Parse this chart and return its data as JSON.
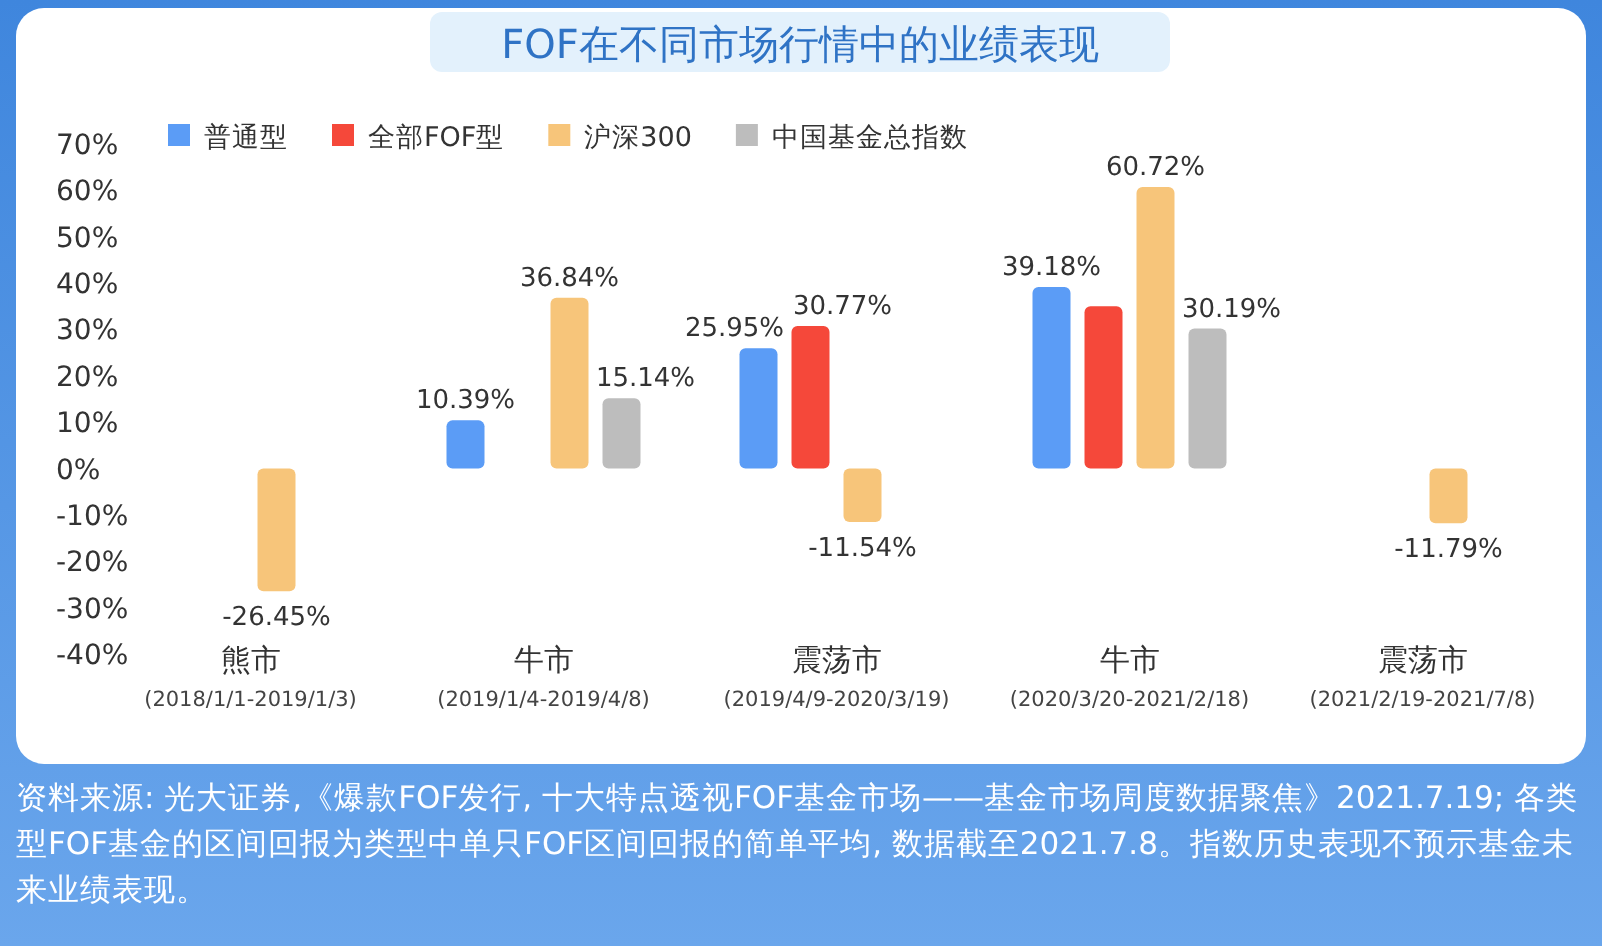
{
  "chart_data": {
    "type": "bar",
    "title": "FOF在不同市场行情中的业绩表现",
    "categories": [
      "熊市 (2018/1/1-2019/1/3)",
      "牛市 (2019/1/4-2019/4/8)",
      "震荡市 (2019/4/9-2020/3/19)",
      "牛市 (2020/3/20-2021/2/18)",
      "震荡市 (2021/2/19-2021/7/8)"
    ],
    "series": [
      {
        "name": "普通型",
        "color": "#5b9cf6",
        "values": [
          null,
          10.39,
          25.95,
          39.18,
          null
        ],
        "value_labels": [
          null,
          "10.39%",
          "25.95%",
          "39.18%",
          null
        ]
      },
      {
        "name": "全部FOF型",
        "color": "#f5483a",
        "values": [
          null,
          null,
          30.77,
          35,
          null
        ],
        "value_labels": [
          null,
          null,
          "30.77%",
          null,
          null
        ]
      },
      {
        "name": "沪深300",
        "color": "#f7c57a",
        "values": [
          -26.45,
          36.84,
          -11.54,
          60.72,
          -11.79
        ],
        "value_labels": [
          "-26.45%",
          "36.84%",
          "-11.54%",
          "60.72%",
          "-11.79%"
        ]
      },
      {
        "name": "中国基金总指数",
        "color": "#bdbdbd",
        "values": [
          null,
          15.14,
          null,
          30.19,
          null
        ],
        "value_labels": [
          null,
          "15.14%",
          null,
          "30.19%",
          null
        ]
      }
    ],
    "ylim": [
      -40,
      70
    ],
    "yticks": [
      {
        "value": 70,
        "label": "70%"
      },
      {
        "value": 60,
        "label": "60%"
      },
      {
        "value": 50,
        "label": "50%"
      },
      {
        "value": 40,
        "label": "40%"
      },
      {
        "value": 30,
        "label": "30%"
      },
      {
        "value": 20,
        "label": "20%"
      },
      {
        "value": 10,
        "label": "10%"
      },
      {
        "value": 0,
        "label": "0%"
      },
      {
        "value": -10,
        "label": "-10%"
      },
      {
        "value": -20,
        "label": "-20%"
      },
      {
        "value": -30,
        "label": "-30%"
      },
      {
        "value": -40,
        "label": "-40%"
      }
    ],
    "legend": "top left",
    "grid": false,
    "annotations": [
      "资料来源: 光大证券,《爆款FOF发行, 十大特点透视FOF基金市场——基金市场周度数据聚焦》2021.7.19; 各类型FOF基金的区间回报为类型中单只FOF区间回报的简单平均, 数据截至2021.7.8。指数历史表现不预示基金未来业绩表现。"
    ]
  }
}
